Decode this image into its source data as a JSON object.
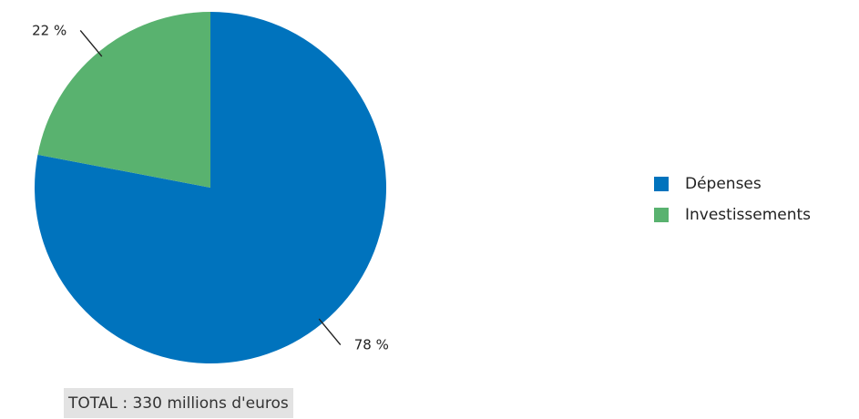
{
  "chart_data": {
    "type": "pie",
    "slices": [
      {
        "name": "Dépenses",
        "value": 78,
        "label": "78 %",
        "color": "#0073bd"
      },
      {
        "name": "Investissements",
        "value": 22,
        "label": "22 %",
        "color": "#59b26f"
      }
    ],
    "legend": {
      "placement": "right",
      "items": [
        {
          "label": "Dépenses",
          "color": "#0073bd"
        },
        {
          "label": "Investissements",
          "color": "#59b26f"
        }
      ]
    },
    "total_label": "TOTAL : 330 millions d'euros"
  }
}
